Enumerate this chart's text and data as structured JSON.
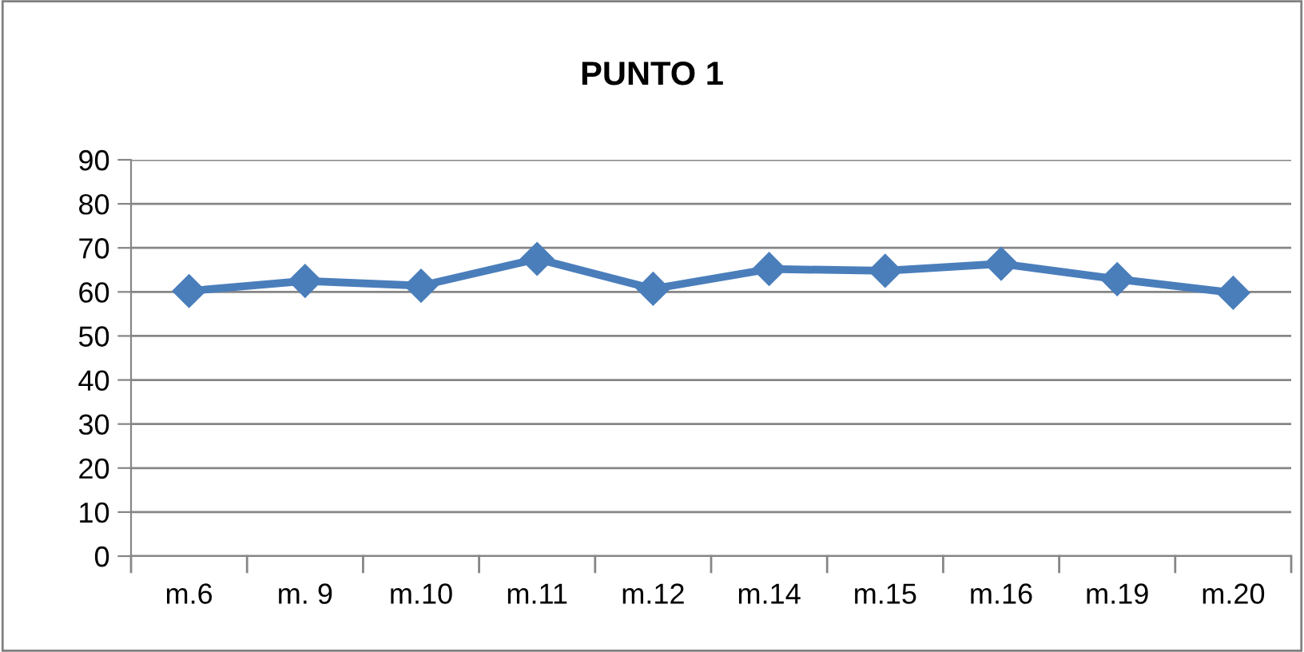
{
  "chart_data": {
    "type": "line",
    "title": "PUNTO 1",
    "categories": [
      "m.6",
      "m. 9",
      "m.10",
      "m.11",
      "m.12",
      "m.14",
      "m.15",
      "m.16",
      "m.19",
      "m.20"
    ],
    "series": [
      {
        "color": "#4a7ebb",
        "values": [
          60.2,
          62.5,
          61.4,
          67.5,
          60.7,
          65.2,
          64.8,
          66.4,
          62.9,
          59.8
        ]
      }
    ],
    "ylim": [
      0,
      90
    ],
    "yticks": [
      0,
      10,
      20,
      30,
      40,
      50,
      60,
      70,
      80,
      90
    ],
    "grid": "y",
    "marker": "diamond",
    "line_style": "solid",
    "legend": false
  }
}
